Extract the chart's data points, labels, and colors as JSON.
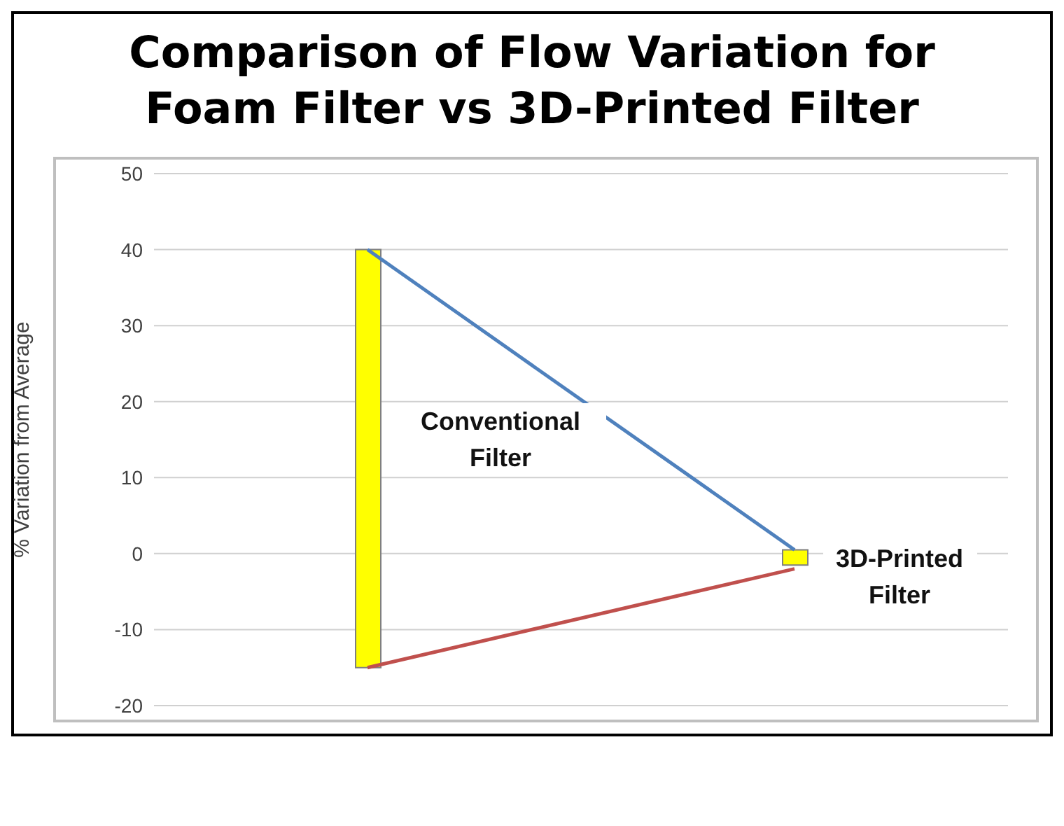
{
  "chart_data": {
    "type": "bar",
    "title": "Comparison of Flow Variation for Foam Filter vs 3D-Printed Filter",
    "ylabel": "% Variation from Average",
    "categories": [
      null,
      null
    ],
    "series": [
      {
        "color": "#ffff00",
        "values": [
          55,
          2
        ],
        "base": [
          -15,
          -1.5
        ]
      },
      {
        "type": "line",
        "color": "#4f81bd",
        "values": [
          40,
          0.5
        ]
      },
      {
        "type": "line",
        "color": "#c0504d",
        "values": [
          -15,
          -2
        ]
      }
    ],
    "ylim": [
      -20,
      50
    ],
    "yticks": [
      -20,
      -10,
      0,
      10,
      20,
      30,
      40,
      50
    ],
    "grid": "y",
    "legend": false,
    "tick_labels": "y",
    "marker": "none",
    "annotations": [
      "Conventional Filter",
      "3D-Printed Filter"
    ]
  }
}
